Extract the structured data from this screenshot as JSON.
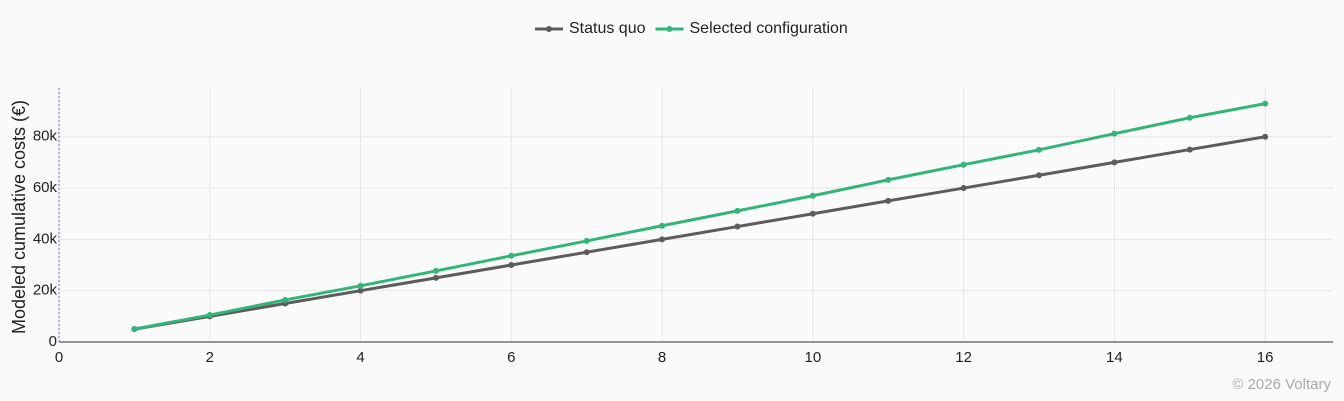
{
  "chart_data": {
    "type": "line",
    "y_label": "Modeled cumulative costs (€)",
    "x": [
      1,
      2,
      3,
      4,
      5,
      6,
      7,
      8,
      9,
      10,
      11,
      12,
      13,
      14,
      15,
      16
    ],
    "series": [
      {
        "name": "Status quo",
        "color": "#5c5c5c",
        "values": [
          5000,
          10000,
          15000,
          20000,
          25000,
          30000,
          35000,
          40000,
          45000,
          50000,
          55000,
          60000,
          65000,
          70000,
          75000,
          80000
        ]
      },
      {
        "name": "Selected configuration",
        "color": "#33b57a",
        "values": [
          5100,
          10500,
          16400,
          21900,
          27700,
          33600,
          39400,
          45300,
          51100,
          57000,
          63200,
          69100,
          74900,
          81200,
          87400,
          92900
        ]
      }
    ],
    "xlim": [
      0,
      16.9
    ],
    "ylim": [
      0,
      99000
    ],
    "xticks": [
      0,
      2,
      4,
      6,
      8,
      10,
      12,
      14,
      16
    ],
    "yticks": [
      0,
      {
        "value": 20000,
        "label": "20k"
      },
      {
        "value": 40000,
        "label": "40k"
      },
      {
        "value": 60000,
        "label": "60k"
      },
      {
        "value": 80000,
        "label": "80k"
      }
    ],
    "grid": true,
    "legend": "top",
    "footer": "© 2026 Voltary"
  }
}
